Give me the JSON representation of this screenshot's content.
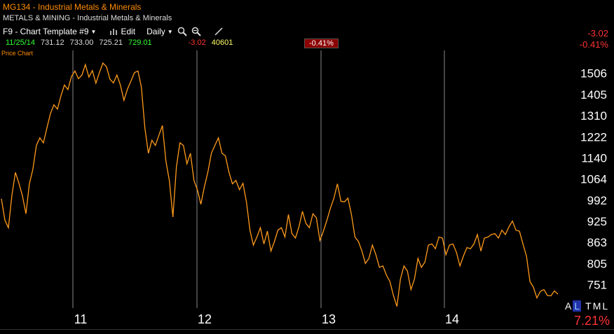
{
  "header": {
    "title": "MG134 - Industrial Metals & Minerals",
    "subtitle": "METALS & MINING - Industrial Metals & Minerals",
    "toolbar": {
      "template": "F9 - Chart Template #9",
      "edit": "Edit",
      "period": "Daily"
    },
    "quote": {
      "date": "11/25/14",
      "open": "731.12",
      "high": "733.00",
      "low": "725.21",
      "close": "729.01",
      "change": "-3.02",
      "volume": "40601"
    },
    "pct_badge": "-0.41%",
    "right_change": "-3.02",
    "right_pct": "-0.41%"
  },
  "panel_label": "Price Chart",
  "legend": {
    "a": "A",
    "l": "L",
    "t": "T",
    "m": "M",
    "l2": "L"
  },
  "bottom_pct": "7.21%",
  "colors": {
    "line": "#ff9a1a",
    "grid": "#888888",
    "background": "#000000"
  },
  "chart_data": {
    "type": "line",
    "x_tick_labels": [
      "11",
      "12",
      "13",
      "14"
    ],
    "y_tick_labels": [
      "1506",
      "1405",
      "1310",
      "1222",
      "1140",
      "1064",
      "992",
      "925",
      "863",
      "805",
      "751"
    ],
    "y_scale": "log",
    "ylim": [
      700,
      1620
    ],
    "grid": "vertical",
    "series": [
      {
        "values": [
          990,
          930,
          900,
          1010,
          1080,
          1050,
          1000,
          950,
          1040,
          1100,
          1180,
          1220,
          1190,
          1260,
          1310,
          1360,
          1330,
          1400,
          1440,
          1430,
          1480,
          1520,
          1470,
          1500,
          1540,
          1490,
          1510,
          1460,
          1500,
          1560,
          1530,
          1480,
          1450,
          1500,
          1440,
          1380,
          1420,
          1470,
          1500,
          1520,
          1430,
          1260,
          1150,
          1210,
          1180,
          1230,
          1260,
          1130,
          1050,
          940,
          1100,
          1200,
          1180,
          1120,
          1150,
          1060,
          1020,
          980,
          1030,
          1090,
          1150,
          1190,
          1210,
          1160,
          1140,
          1090,
          1040,
          1060,
          1020,
          1050,
          980,
          900,
          850,
          880,
          900,
          860,
          890,
          840,
          860,
          900,
          900,
          880,
          940,
          890,
          870,
          910,
          950,
          920,
          900,
          950,
          930,
          870,
          890,
          930,
          960,
          1000,
          1040,
          990,
          980,
          1000,
          940,
          880,
          860,
          840,
          800,
          820,
          850,
          830,
          790,
          800,
          770,
          760,
          720,
          700,
          760,
          800,
          780,
          740,
          760,
          820,
          790,
          810,
          850,
          860,
          840,
          880,
          870,
          830,
          850,
          860,
          830,
          800,
          820,
          850,
          840,
          860,
          880,
          840,
          870,
          880,
          880,
          890,
          870,
          900,
          880,
          910,
          920,
          900,
          890,
          860,
          820,
          760,
          740,
          720,
          730,
          740,
          720,
          725,
          731,
          729
        ]
      }
    ]
  }
}
